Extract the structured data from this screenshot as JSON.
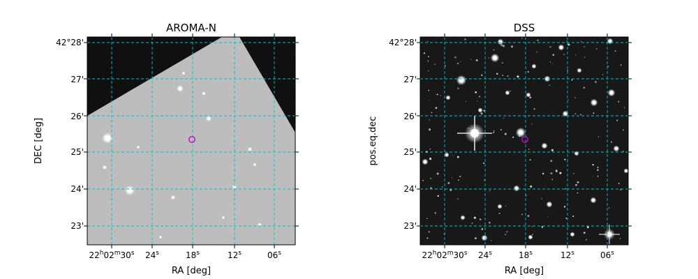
{
  "panels": [
    {
      "title": "AROMA-N",
      "xlabel": "RA [deg]",
      "ylabel": "DEC [deg]",
      "dec_ticks": [
        "42°28'",
        "27'",
        "26'",
        "25'",
        "24'",
        "23'"
      ],
      "ra_ticks": [
        {
          "main": "22",
          "h": "h",
          "m_val": "02",
          "m": "m",
          "s_val": "30",
          "s": "s"
        },
        {
          "main": "24",
          "s": "s"
        },
        {
          "main": "18",
          "s": "s"
        },
        {
          "main": "12",
          "s": "s"
        },
        {
          "main": "06",
          "s": "s"
        }
      ],
      "image": "AROMA-N sky survey cutout (grey map with black masked corners)",
      "marker_color": "#cc00cc"
    },
    {
      "title": "DSS",
      "xlabel": "RA [deg]",
      "ylabel": "pos.eq.dec",
      "dec_ticks": [
        "42°28'",
        "27'",
        "26'",
        "25'",
        "24'",
        "23'"
      ],
      "ra_ticks": [
        {
          "main": "22",
          "h": "h",
          "m_val": "02",
          "m": "m",
          "s_val": "30",
          "s": "s"
        },
        {
          "main": "24",
          "s": "s"
        },
        {
          "main": "18",
          "s": "s"
        },
        {
          "main": "12",
          "s": "s"
        },
        {
          "main": "06",
          "s": "s"
        }
      ],
      "image": "DSS star field cutout (black sky with white stars)",
      "marker_color": "#cc00cc"
    }
  ],
  "colors": {
    "grid": "#00c4cc",
    "marker": "#cc00cc",
    "aroma_bg": "#bdbdbd",
    "dss_bg": "#111111"
  }
}
